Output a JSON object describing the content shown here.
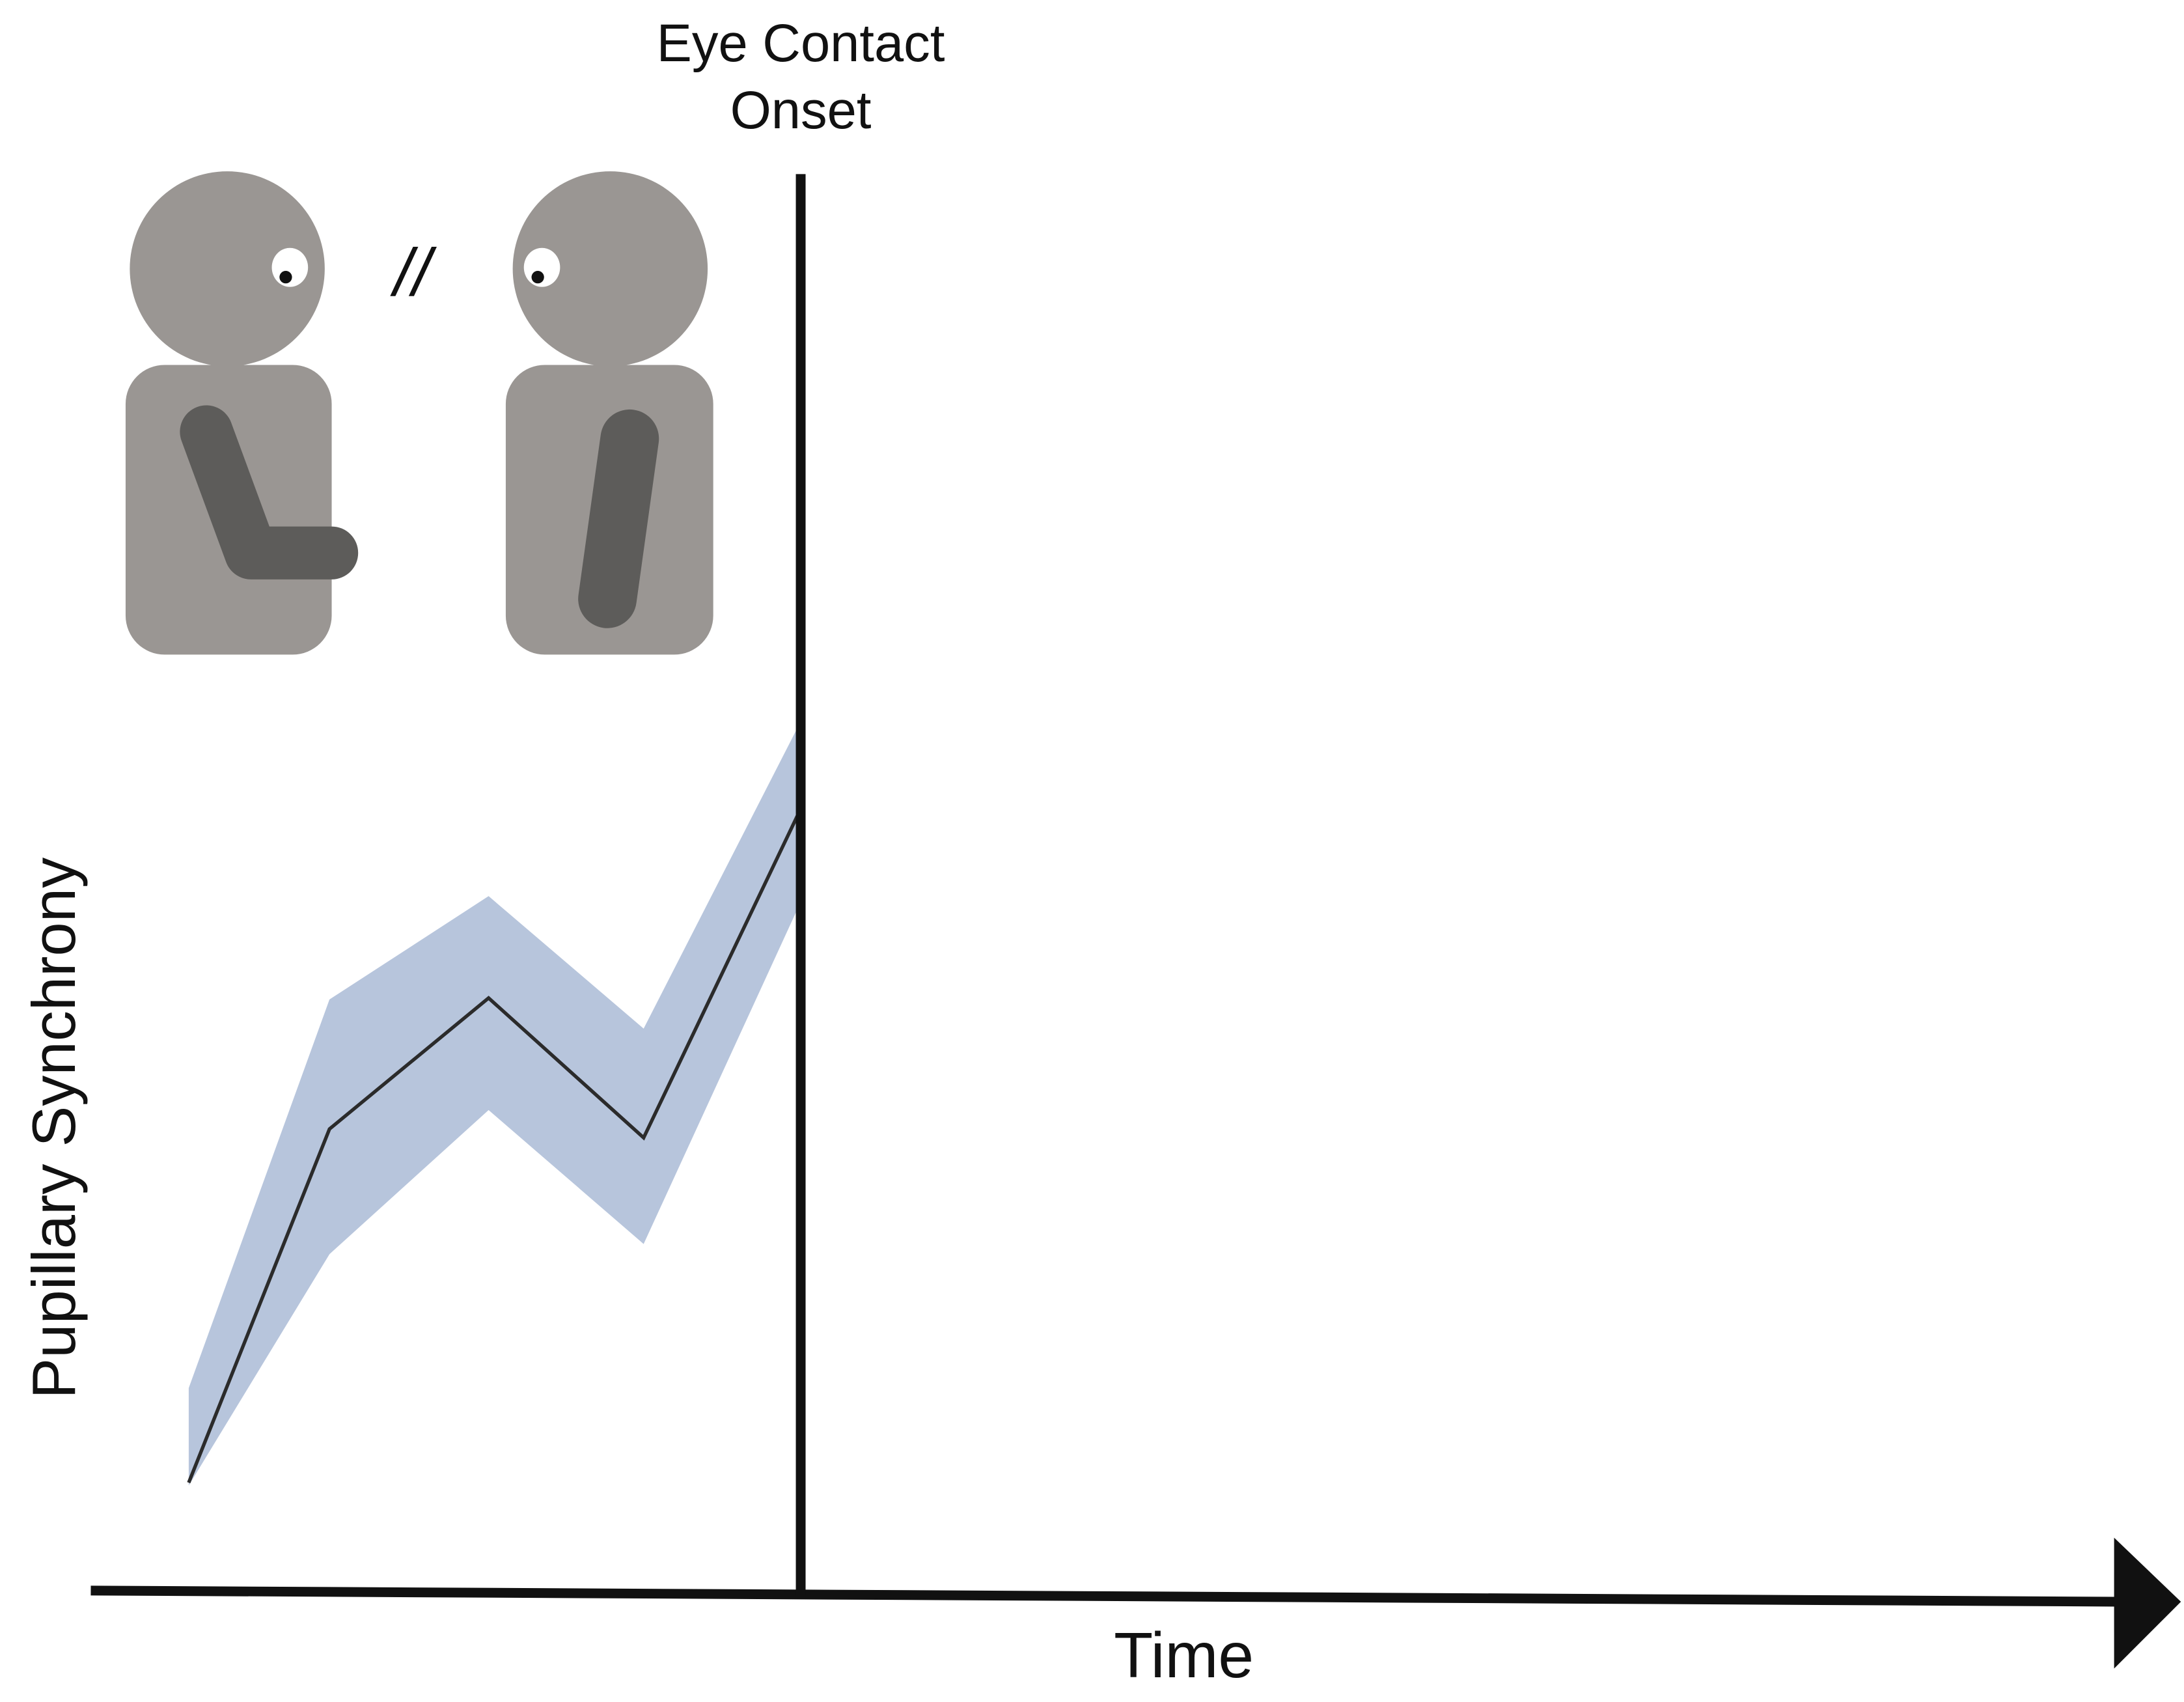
{
  "chart_data": {
    "type": "line",
    "x": [
      4.8,
      11.7,
      19.5,
      27.1,
      34.8
    ],
    "xlim": [
      0,
      100
    ],
    "ylim": [
      0,
      100
    ],
    "series": [
      {
        "color": "#2b2b2b",
        "band_color": "#b7c5dc",
        "values": [
          7.7,
          32,
          41,
          31.4,
          54
        ],
        "upper": [
          14.2,
          40.9,
          48,
          38.9,
          60
        ],
        "lower": [
          7.5,
          23.4,
          33.3,
          24.1,
          47.6
        ]
      }
    ],
    "xlabel": "Time",
    "ylabel": "Pupillary Synchrony",
    "annotation": {
      "x": 34.8,
      "text": "Eye Contact Onset"
    },
    "marker_text": "//"
  }
}
